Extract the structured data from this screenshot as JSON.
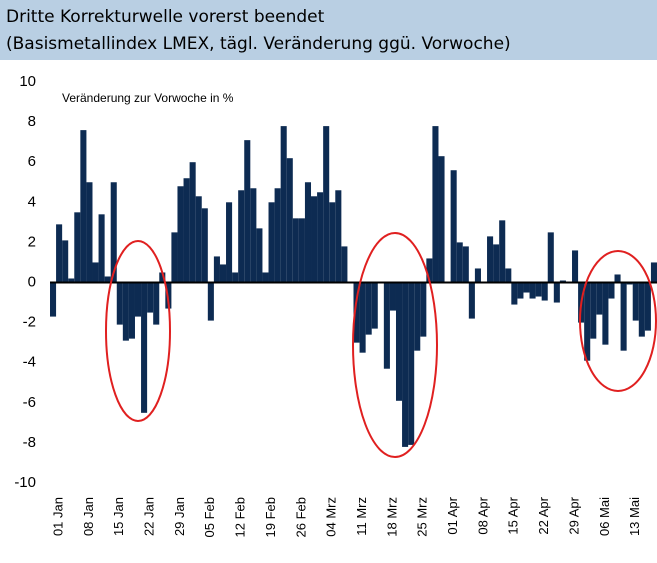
{
  "chart_data": {
    "type": "bar",
    "title": "Dritte Korrekturwelle vorerst beendet",
    "subtitle": "(Basismetallindex LMEX, tägl. Veränderung ggü. Vorwoche)",
    "annotation": "Veränderung zur Vorwoche in %",
    "color": "#0d2b52",
    "categories": [
      "01 Jan",
      null,
      null,
      null,
      null,
      "08 Jan",
      null,
      null,
      null,
      null,
      "15 Jan",
      null,
      null,
      null,
      null,
      "22 Jan",
      null,
      null,
      null,
      null,
      "29 Jan",
      null,
      null,
      null,
      null,
      "05 Feb",
      null,
      null,
      null,
      null,
      "12 Feb",
      null,
      null,
      null,
      null,
      "19 Feb",
      null,
      null,
      null,
      null,
      "26 Feb",
      null,
      null,
      null,
      null,
      "04 Mrz",
      null,
      null,
      null,
      null,
      "11 Mrz",
      null,
      null,
      null,
      null,
      "18 Mrz",
      null,
      null,
      null,
      null,
      "25 Mrz",
      null,
      null,
      null,
      null,
      "01 Apr",
      null,
      null,
      null,
      null,
      "08 Apr",
      null,
      null,
      null,
      null,
      "15 Apr",
      null,
      null,
      null,
      null,
      "22 Apr",
      null,
      null,
      null,
      null,
      "29 Apr",
      null,
      null,
      null,
      null,
      "06 Mai",
      null,
      null,
      null,
      null,
      "13 Mai",
      null,
      null,
      null,
      null
    ],
    "values": [
      -1.7,
      2.9,
      2.1,
      0.2,
      3.5,
      7.6,
      5.0,
      1.0,
      3.4,
      0.3,
      5.0,
      -2.1,
      -2.9,
      -2.8,
      -1.7,
      -6.5,
      -1.5,
      -2.1,
      0.5,
      -1.3,
      2.5,
      4.8,
      5.2,
      6.0,
      4.3,
      3.7,
      -1.9,
      1.3,
      0.9,
      4.0,
      0.5,
      4.6,
      7.1,
      4.7,
      2.7,
      0.5,
      4.0,
      4.7,
      7.8,
      6.2,
      3.2,
      3.2,
      5.0,
      4.3,
      4.5,
      7.8,
      4.0,
      4.6,
      1.8,
      0,
      -3.0,
      -3.5,
      -2.6,
      -2.3,
      0,
      -4.3,
      -1.4,
      -5.9,
      -8.2,
      -8.1,
      -3.4,
      -2.7,
      1.2,
      7.8,
      6.3,
      0,
      5.6,
      2.0,
      1.8,
      -1.8,
      0.7,
      0,
      2.3,
      1.9,
      3.1,
      0.7,
      -1.1,
      -0.8,
      -0.5,
      -0.8,
      -0.7,
      -0.9,
      2.5,
      -1.0,
      0.1,
      0,
      1.6,
      -2.0,
      -3.9,
      -2.8,
      -1.6,
      -3.1,
      -0.8,
      0.4,
      -3.4,
      -0.1,
      -1.9,
      -2.7,
      -2.4,
      1.0
    ],
    "ylim": [
      -10,
      10
    ],
    "yticks": [
      -10,
      -8,
      -6,
      -4,
      -2,
      0,
      2,
      4,
      6,
      8,
      10
    ],
    "grid": false
  }
}
